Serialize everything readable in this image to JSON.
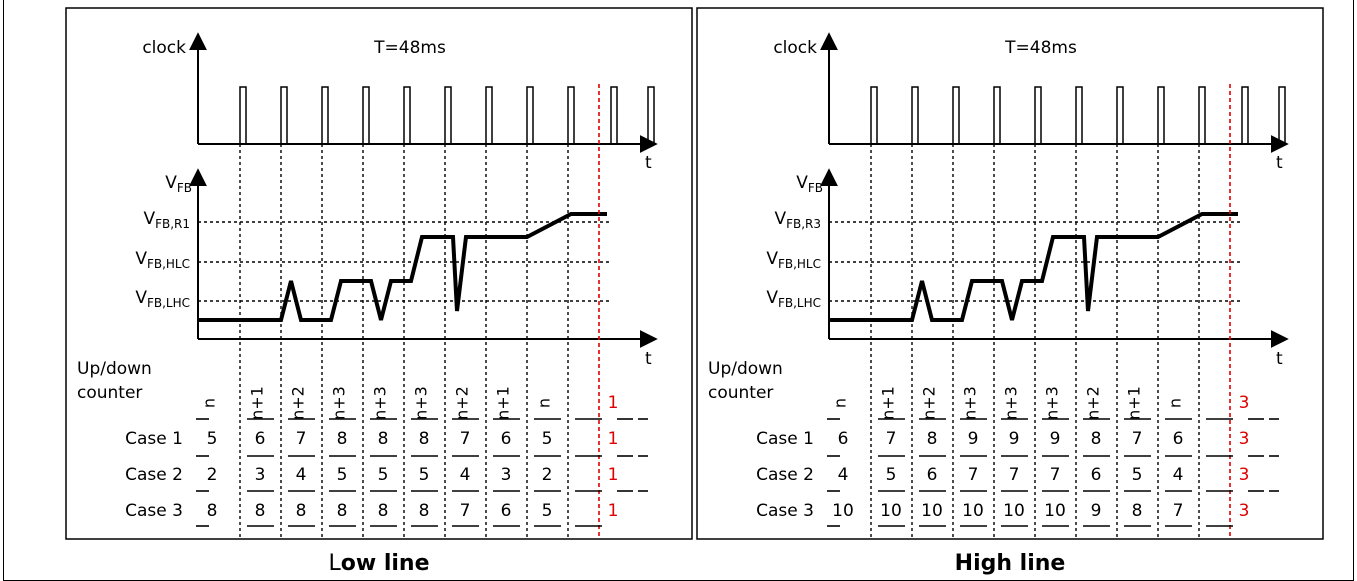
{
  "panels": [
    {
      "id": "low",
      "clock_label": "clock",
      "period_label": "T=48ms",
      "t_label": "t",
      "vfb_main": "V",
      "vfb_sub": "FB",
      "levels": [
        {
          "main": "V",
          "sub": "FB,R1"
        },
        {
          "main": "V",
          "sub": "FB,HLC"
        },
        {
          "main": "V",
          "sub": "FB,LHC"
        }
      ],
      "counter_label_1": "Up/down",
      "counter_label_2": "counter",
      "counter_values": [
        "n",
        "n+1",
        "n+2",
        "n+3",
        "n+3",
        "n+3",
        "n+2",
        "n+1",
        "n"
      ],
      "counter_final": "1",
      "cases": [
        {
          "label": "Case 1",
          "values": [
            "5",
            "6",
            "7",
            "8",
            "8",
            "8",
            "7",
            "6",
            "5"
          ],
          "final": "1"
        },
        {
          "label": "Case 2",
          "values": [
            "2",
            "3",
            "4",
            "5",
            "5",
            "5",
            "4",
            "3",
            "2"
          ],
          "final": "1"
        },
        {
          "label": "Case 3",
          "values": [
            "8",
            "8",
            "8",
            "8",
            "8",
            "8",
            "7",
            "6",
            "5"
          ],
          "final": "1"
        }
      ],
      "caption_first": "L",
      "caption_rest": "ow line"
    },
    {
      "id": "high",
      "clock_label": "clock",
      "period_label": "T=48ms",
      "t_label": "t",
      "vfb_main": "V",
      "vfb_sub": "FB",
      "levels": [
        {
          "main": "V",
          "sub": "FB,R3"
        },
        {
          "main": "V",
          "sub": "FB,HLC"
        },
        {
          "main": "V",
          "sub": "FB,LHC"
        }
      ],
      "counter_label_1": "Up/down",
      "counter_label_2": "counter",
      "counter_values": [
        "n",
        "n+1",
        "n+2",
        "n+3",
        "n+3",
        "n+3",
        "n+2",
        "n+1",
        "n"
      ],
      "counter_final": "3",
      "cases": [
        {
          "label": "Case 1",
          "values": [
            "6",
            "7",
            "8",
            "9",
            "9",
            "9",
            "8",
            "7",
            "6"
          ],
          "final": "3"
        },
        {
          "label": "Case 2",
          "values": [
            "4",
            "5",
            "6",
            "7",
            "7",
            "7",
            "6",
            "5",
            "4"
          ],
          "final": "3"
        },
        {
          "label": "Case 3",
          "values": [
            "10",
            "10",
            "10",
            "10",
            "10",
            "10",
            "9",
            "8",
            "7"
          ],
          "final": "3"
        }
      ],
      "caption_first": "",
      "caption_rest": "High line"
    }
  ]
}
